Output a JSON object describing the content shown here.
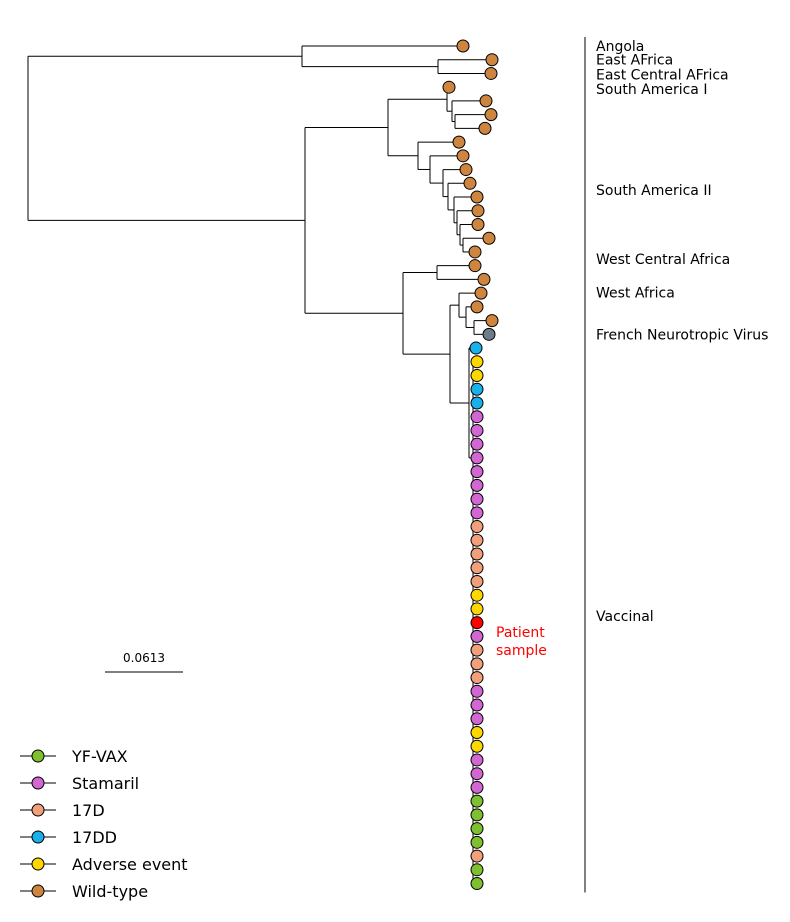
{
  "colors": {
    "YF-VAX": "#7fc031",
    "Stamaril": "#d267d3",
    "17D": "#f2a07b",
    "17DD": "#1ab1ea",
    "Adverse event": "#ffd700",
    "Wild-type": "#cd8540",
    "French Neurotropic Virus": "#6e7b8b",
    "Patient": "#ff0000"
  },
  "clades": [
    {
      "label": "Angola",
      "tips": [
        "Wild-type"
      ]
    },
    {
      "label": "East AFrica",
      "tips": [
        "Wild-type"
      ]
    },
    {
      "label": "East Central AFrica",
      "tips": [
        "Wild-type"
      ]
    },
    {
      "label": "South America I",
      "tips": [
        "Wild-type",
        "Wild-type",
        "Wild-type",
        "Wild-type"
      ]
    },
    {
      "label": "South America II",
      "tips": [
        "Wild-type",
        "Wild-type",
        "Wild-type",
        "Wild-type",
        "Wild-type",
        "Wild-type",
        "Wild-type",
        "Wild-type"
      ]
    },
    {
      "label": "West Central Africa",
      "tips": [
        "Wild-type",
        "Wild-type"
      ]
    },
    {
      "label": "West Africa",
      "tips": [
        "Wild-type",
        "Wild-type",
        "Wild-type",
        "Wild-type"
      ]
    },
    {
      "label": "French Neurotropic Virus",
      "tips": [
        "French Neurotropic Virus"
      ]
    },
    {
      "label": "Vaccinal",
      "tips": [
        "17DD",
        "Adverse event",
        "Adverse event",
        "17DD",
        "17DD",
        "Stamaril",
        "Stamaril",
        "Stamaril",
        "Stamaril",
        "Stamaril",
        "Stamaril",
        "Stamaril",
        "Stamaril",
        "17D",
        "17D",
        "17D",
        "17D",
        "17D",
        "Adverse event",
        "Adverse event",
        "Patient",
        "Stamaril",
        "17D",
        "17D",
        "17D",
        "Stamaril",
        "Stamaril",
        "Stamaril",
        "Adverse event",
        "Adverse event",
        "Stamaril",
        "Stamaril",
        "Stamaril",
        "YF-VAX",
        "YF-VAX",
        "YF-VAX",
        "YF-VAX",
        "17D",
        "YF-VAX",
        "YF-VAX"
      ]
    }
  ],
  "annotation": {
    "patient_line1": "Patient",
    "patient_line2": "sample"
  },
  "scale_bar": {
    "value": "0.0613"
  },
  "legend": [
    {
      "label": "YF-VAX",
      "key": "YF-VAX"
    },
    {
      "label": "Stamaril",
      "key": "Stamaril"
    },
    {
      "label": "17D",
      "key": "17D"
    },
    {
      "label": "17DD",
      "key": "17DD"
    },
    {
      "label": "Adverse event",
      "key": "Adverse event"
    },
    {
      "label": "Wild-type",
      "key": "Wild-type"
    }
  ]
}
